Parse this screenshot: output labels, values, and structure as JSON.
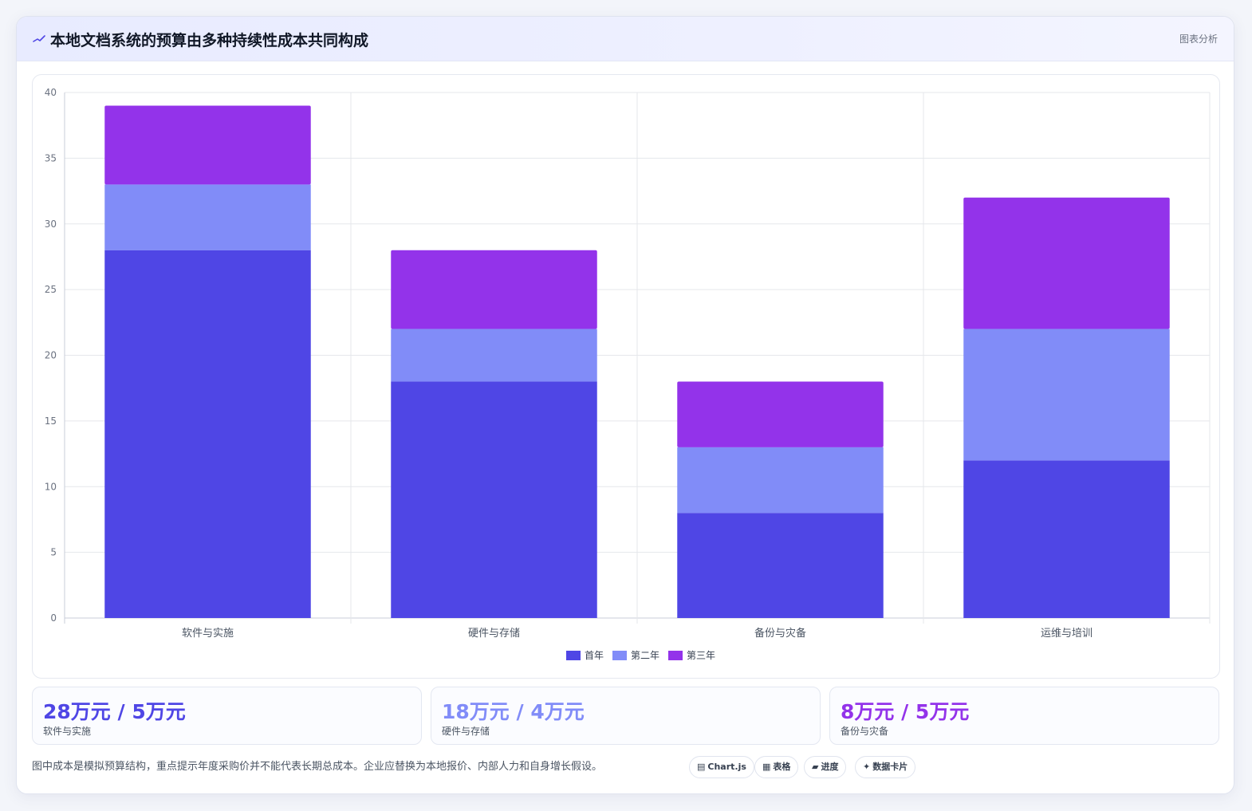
{
  "header": {
    "title": "本地文档系统的预算由多种持续性成本共同构成",
    "tag": "图表分析",
    "icon": "trend-line-icon"
  },
  "chart_data": {
    "type": "bar",
    "stacked": true,
    "categories": [
      "软件与实施",
      "硬件与存储",
      "备份与灾备",
      "运维与培训"
    ],
    "series": [
      {
        "name": "首年",
        "color": "#4f46e5",
        "values": [
          28,
          18,
          8,
          12
        ]
      },
      {
        "name": "第二年",
        "color": "#818cf8",
        "values": [
          5,
          4,
          5,
          10
        ]
      },
      {
        "name": "第三年",
        "color": "#9333ea",
        "values": [
          6,
          6,
          5,
          10
        ]
      }
    ],
    "ylim": [
      0,
      40
    ],
    "yticks": [
      0,
      5,
      10,
      15,
      20,
      25,
      30,
      35,
      40
    ],
    "grid": true,
    "legend": "bottom-center"
  },
  "stats": [
    {
      "value": "28万元 / 5万元",
      "label": "软件与实施",
      "color": "#4f46e5"
    },
    {
      "value": "18万元 / 4万元",
      "label": "硬件与存储",
      "color": "#818cf8"
    },
    {
      "value": "8万元 / 5万元",
      "label": "备份与灾备",
      "color": "#9333ea"
    }
  ],
  "footer": {
    "note": "图中成本是模拟预算结构，重点提示年度采购价并不能代表长期总成本。企业应替换为本地报价、内部人力和自身增长假设。"
  },
  "chips": [
    {
      "glyph": "▤",
      "label": "Chart.js",
      "icon": "chart-icon"
    },
    {
      "glyph": "▦",
      "label": "表格",
      "icon": "table-icon"
    },
    {
      "glyph": "▰",
      "label": "进度",
      "icon": "progress-icon"
    },
    {
      "glyph": "✦",
      "label": "数据卡片",
      "icon": "sparkle-icon"
    }
  ]
}
